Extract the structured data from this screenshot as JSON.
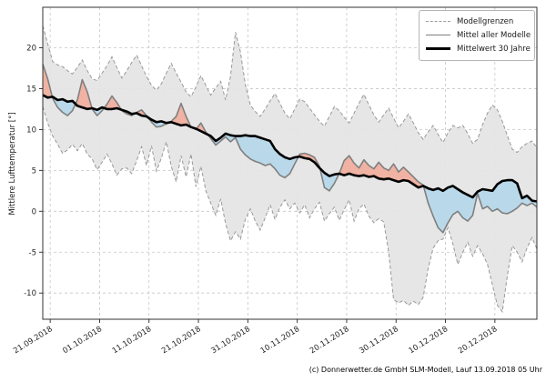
{
  "figure": {
    "ylabel": "Mittlere Lufttemperatur [°]",
    "footer": "(c) Donnerwetter.de GmbH SLM-Modell, Lauf 13.09.2018 05 Uhr"
  },
  "legend": {
    "items": [
      {
        "label": "Modellgrenzen",
        "style": "dashed-gray"
      },
      {
        "label": "Mittel aller Modelle",
        "style": "solid-gray"
      },
      {
        "label": "Mittelwert 30 Jahre",
        "style": "solid-black-thick"
      }
    ]
  },
  "colors": {
    "band_fill": "#e4e4e4",
    "bound_line": "#999999",
    "warm_fill": "#f0b2a2",
    "cold_fill": "#b9d9ea",
    "model_mean_line": "#7f7f7f",
    "mean30_line": "#000000",
    "grid": "#c6c6c6",
    "frame": "#333333",
    "tick": "#262626"
  },
  "chart_data": {
    "type": "line",
    "title": "",
    "xlabel": "",
    "ylabel": "Mittlere Lufttemperatur [°]",
    "grid": true,
    "legend_position": "upper right",
    "ylim": [
      -13.2,
      25.0
    ],
    "y_ticks": [
      20,
      15,
      10,
      5,
      0,
      -5,
      -10
    ],
    "y_ticklabels": [
      "20",
      "15",
      "10",
      "5",
      "0",
      "-5",
      "-10"
    ],
    "x_unit": "daily values, index 0 ≈ 19.09.2018",
    "x_tick_days": [
      1.5,
      11.5,
      21.5,
      31.5,
      41.5,
      51.5,
      61.5,
      71.5,
      81.5,
      91.5
    ],
    "x_ticklabels": [
      "21.09.2018",
      "01.10.2018",
      "11.10.2018",
      "21.10.2018",
      "31.10.2018",
      "10.11.2018",
      "20.11.2018",
      "30.11.2018",
      "10.12.2018",
      "20.12.2018"
    ],
    "series": [
      {
        "name": "Modellgrenzen (obere Grenze)",
        "role": "upper_bound",
        "values": [
          22.7,
          20.5,
          18.3,
          17.9,
          17.7,
          17.2,
          16.8,
          17.6,
          18.5,
          17.2,
          16.2,
          16.0,
          16.9,
          17.8,
          18.9,
          17.6,
          16.3,
          17.2,
          18.2,
          19.1,
          17.8,
          16.5,
          15.4,
          14.8,
          15.6,
          16.9,
          18.1,
          16.9,
          15.8,
          14.6,
          14.0,
          15.2,
          16.6,
          15.4,
          14.2,
          15.1,
          15.9,
          13.6,
          16.5,
          21.9,
          19.5,
          15.5,
          13.0,
          12.2,
          11.6,
          12.5,
          13.5,
          14.4,
          13.2,
          12.0,
          11.3,
          12.5,
          13.7,
          13.4,
          12.6,
          11.8,
          11.0,
          10.4,
          11.6,
          12.8,
          12.3,
          11.5,
          10.8,
          12.0,
          13.2,
          14.3,
          13.0,
          11.8,
          10.9,
          11.8,
          12.6,
          11.4,
          10.2,
          11.0,
          11.9,
          10.8,
          9.6,
          8.8,
          9.7,
          10.5,
          9.4,
          8.4,
          9.6,
          10.5,
          10.2,
          10.5,
          9.5,
          8.3,
          8.8,
          10.6,
          12.0,
          13.0,
          12.4,
          11.0,
          9.3,
          7.6,
          7.2,
          7.9,
          8.3,
          8.6,
          7.8
        ]
      },
      {
        "name": "Modellgrenzen (untere Grenze)",
        "role": "lower_bound",
        "values": [
          12.8,
          10.8,
          9.2,
          8.2,
          7.1,
          7.5,
          8.2,
          7.4,
          8.3,
          7.0,
          6.4,
          5.1,
          6.0,
          7.0,
          5.8,
          4.4,
          5.2,
          5.3,
          4.6,
          6.2,
          7.9,
          5.6,
          8.0,
          4.9,
          6.5,
          8.5,
          5.5,
          3.6,
          6.8,
          4.2,
          7.0,
          3.0,
          5.5,
          2.5,
          1.0,
          -0.5,
          1.5,
          -1.5,
          -3.6,
          -2.5,
          -3.4,
          -1.0,
          0.3,
          -1.2,
          -2.3,
          -0.8,
          0.8,
          -1.0,
          0.5,
          1.4,
          0.3,
          1.0,
          -0.2,
          0.8,
          -0.8,
          0.3,
          1.1,
          -1.2,
          -0.3,
          0.5,
          -1.1,
          0.2,
          1.4,
          -1.2,
          0.3,
          0.9,
          -0.6,
          -1.4,
          -0.9,
          -1.3,
          -5.0,
          -10.8,
          -11.2,
          -10.9,
          -11.5,
          -11.0,
          -11.4,
          -10.5,
          -7.0,
          -4.5,
          -3.6,
          -3.4,
          -2.0,
          -4.0,
          -6.5,
          -5.0,
          -3.8,
          -5.5,
          -4.2,
          -5.2,
          -6.5,
          -9.0,
          -11.5,
          -12.3,
          -8.0,
          -4.2,
          -5.0,
          -6.2,
          -4.5,
          -3.2,
          -4.6
        ]
      },
      {
        "name": "Mittel aller Modelle",
        "role": "model_mean",
        "values": [
          18.0,
          16.2,
          13.8,
          12.7,
          12.1,
          11.7,
          12.3,
          13.6,
          16.1,
          14.6,
          12.5,
          11.7,
          12.3,
          13.1,
          14.1,
          13.3,
          12.3,
          11.9,
          11.7,
          12.1,
          12.4,
          11.7,
          10.9,
          10.3,
          10.4,
          10.7,
          11.0,
          11.6,
          13.2,
          11.6,
          10.3,
          10.0,
          10.8,
          9.7,
          8.9,
          8.1,
          8.6,
          9.1,
          8.5,
          9.0,
          7.6,
          6.9,
          6.4,
          6.1,
          5.9,
          5.6,
          5.8,
          5.2,
          4.4,
          4.1,
          4.6,
          5.8,
          7.0,
          7.1,
          6.9,
          6.6,
          5.5,
          2.9,
          2.5,
          3.4,
          4.6,
          6.2,
          6.8,
          5.9,
          5.3,
          6.3,
          5.6,
          5.2,
          6.0,
          5.3,
          5.0,
          5.8,
          4.8,
          5.4,
          4.8,
          4.2,
          3.6,
          3.2,
          1.0,
          -0.6,
          -2.0,
          -2.6,
          -1.4,
          -0.4,
          0.0,
          -0.8,
          -1.2,
          -0.5,
          2.2,
          0.3,
          0.6,
          0.0,
          0.3,
          -0.2,
          -0.3,
          0.0,
          0.4,
          1.0,
          0.7,
          1.0,
          0.5
        ]
      },
      {
        "name": "Mittelwert 30 Jahre",
        "role": "mean_30y",
        "values": [
          14.2,
          13.9,
          14.0,
          13.6,
          13.7,
          13.4,
          13.5,
          12.9,
          12.7,
          12.5,
          12.6,
          12.4,
          12.7,
          12.5,
          12.5,
          12.6,
          12.4,
          12.2,
          11.9,
          12.0,
          11.7,
          11.6,
          11.2,
          10.9,
          11.0,
          10.8,
          10.9,
          10.7,
          10.5,
          10.6,
          10.3,
          10.1,
          9.8,
          9.5,
          9.2,
          8.6,
          9.0,
          9.5,
          9.3,
          9.2,
          9.2,
          9.3,
          9.2,
          9.2,
          9.0,
          8.8,
          8.6,
          7.6,
          7.0,
          6.6,
          6.4,
          6.6,
          6.7,
          6.5,
          6.4,
          6.0,
          5.3,
          4.7,
          4.3,
          4.5,
          4.6,
          4.4,
          4.6,
          4.4,
          4.3,
          4.4,
          4.2,
          4.3,
          4.0,
          3.9,
          4.0,
          3.8,
          3.6,
          3.8,
          3.7,
          3.3,
          2.9,
          3.1,
          2.8,
          2.6,
          2.8,
          2.5,
          2.9,
          3.1,
          2.7,
          2.3,
          2.0,
          1.7,
          2.4,
          2.7,
          2.6,
          2.5,
          3.3,
          3.7,
          3.8,
          3.8,
          3.4,
          1.6,
          1.9,
          1.3,
          1.2
        ]
      }
    ],
    "fills": {
      "band": "area between upper_bound and lower_bound",
      "warmer_than_normal": "model_mean above mean_30y (red)",
      "colder_than_normal": "model_mean below mean_30y (blue)"
    }
  }
}
